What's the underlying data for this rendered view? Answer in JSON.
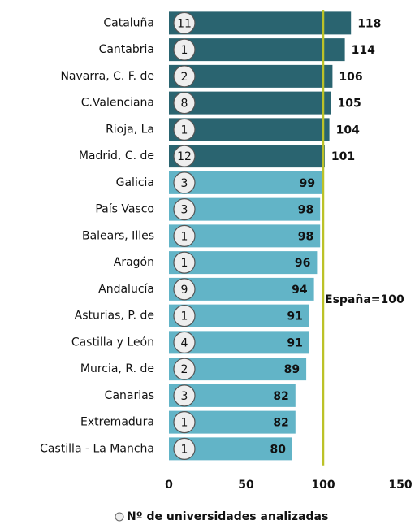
{
  "chart_data": {
    "type": "bar",
    "orientation": "horizontal",
    "categories": [
      "Cataluña",
      "Cantabria",
      "Navarra, C. F. de",
      "C.Valenciana",
      "Rioja, La",
      "Madrid, C. de",
      "Galicia",
      "País Vasco",
      "Balears, Illes",
      "Aragón",
      "Andalucía",
      "Asturias, P. de",
      "Castilla y León",
      "Murcia, R. de",
      "Canarias",
      "Extremadura",
      "Castilla - La Mancha"
    ],
    "values": [
      118,
      114,
      106,
      105,
      104,
      101,
      99,
      98,
      98,
      96,
      94,
      91,
      91,
      89,
      82,
      82,
      80
    ],
    "color_above": "#2a6470",
    "color_below": "#62b4c7",
    "universities": {
      "name": "Nº de universidades analizadas",
      "values": [
        11,
        1,
        2,
        8,
        1,
        12,
        3,
        3,
        1,
        1,
        9,
        1,
        4,
        2,
        3,
        1,
        1
      ]
    },
    "reference": {
      "value": 100,
      "label": "España=100",
      "color": "#bcc228"
    },
    "xlim": [
      0,
      150
    ],
    "xticks": [
      0,
      50,
      100,
      150
    ],
    "grid": false
  }
}
